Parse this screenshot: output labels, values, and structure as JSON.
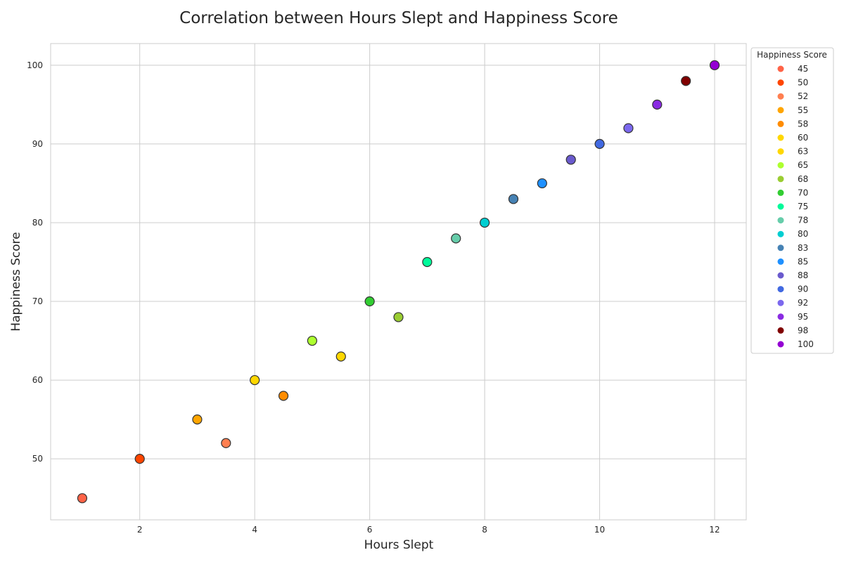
{
  "chart_data": {
    "type": "scatter",
    "title": "Correlation between Hours Slept and Happiness Score",
    "xlabel": "Hours Slept",
    "ylabel": "Happiness Score",
    "xlim": [
      0.45,
      12.55
    ],
    "ylim": [
      42.25,
      102.75
    ],
    "xticks": [
      2,
      4,
      6,
      8,
      10,
      12
    ],
    "yticks": [
      50,
      60,
      70,
      80,
      90,
      100
    ],
    "grid": true,
    "legend": {
      "title": "Happiness Score",
      "placement": "outside-right-top"
    },
    "points": [
      {
        "x": 1,
        "y": 45,
        "label": "45",
        "color": "#ff6347"
      },
      {
        "x": 2,
        "y": 50,
        "label": "50",
        "color": "#ff4500"
      },
      {
        "x": 3.5,
        "y": 52,
        "label": "52",
        "color": "#ff7f50"
      },
      {
        "x": 3,
        "y": 55,
        "label": "55",
        "color": "#ffa500"
      },
      {
        "x": 4.5,
        "y": 58,
        "label": "58",
        "color": "#ff8c00"
      },
      {
        "x": 4,
        "y": 60,
        "label": "60",
        "color": "#ffd700"
      },
      {
        "x": 5.5,
        "y": 63,
        "label": "63",
        "color": "#ffd700"
      },
      {
        "x": 5,
        "y": 65,
        "label": "65",
        "color": "#adff2f"
      },
      {
        "x": 6.5,
        "y": 68,
        "label": "68",
        "color": "#9acd32"
      },
      {
        "x": 6,
        "y": 70,
        "label": "70",
        "color": "#32cd32"
      },
      {
        "x": 7,
        "y": 75,
        "label": "75",
        "color": "#00fa9a"
      },
      {
        "x": 7.5,
        "y": 78,
        "label": "78",
        "color": "#66cdaa"
      },
      {
        "x": 8,
        "y": 80,
        "label": "80",
        "color": "#00ced1"
      },
      {
        "x": 8.5,
        "y": 83,
        "label": "83",
        "color": "#4682b4"
      },
      {
        "x": 9,
        "y": 85,
        "label": "85",
        "color": "#1e90ff"
      },
      {
        "x": 9.5,
        "y": 88,
        "label": "88",
        "color": "#6a5acd"
      },
      {
        "x": 10,
        "y": 90,
        "label": "90",
        "color": "#4169e1"
      },
      {
        "x": 10.5,
        "y": 92,
        "label": "92",
        "color": "#7b68ee"
      },
      {
        "x": 11,
        "y": 95,
        "label": "95",
        "color": "#8a2be2"
      },
      {
        "x": 11.5,
        "y": 98,
        "label": "98",
        "color": "#800000"
      },
      {
        "x": 12,
        "y": 100,
        "label": "100",
        "color": "#9400d3"
      }
    ]
  }
}
